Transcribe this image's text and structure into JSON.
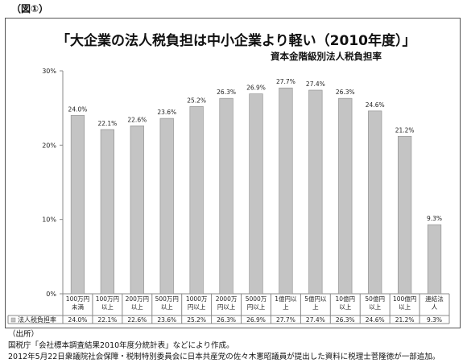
{
  "figure_label": "（図①）",
  "footer": {
    "heading": "（出所）",
    "line1": "国税庁「会社標本調査結果2010年度分統計表」などにより作成。",
    "line2": "2012年5月22日衆議院社会保障・税制特別委員会に日本共産党の佐々木憲昭議員が提出した資料に税理士菅隆徳が一部追加。"
  },
  "chart_data": {
    "type": "bar",
    "title": "「大企業の法人税負担は中小企業より軽い（2010年度）」",
    "subtitle": "資本金階級別法人税負担率",
    "categories": [
      [
        "100万円",
        "未満"
      ],
      [
        "100万円",
        "以上"
      ],
      [
        "200万円",
        "以上"
      ],
      [
        "500万円",
        "以上"
      ],
      [
        "1000万",
        "円以上"
      ],
      [
        "2000万",
        "円以上"
      ],
      [
        "5000万",
        "円以上"
      ],
      [
        "1億円以",
        "上"
      ],
      [
        "5億円以",
        "上"
      ],
      [
        "10億円",
        "以上"
      ],
      [
        "50億円",
        "以上"
      ],
      [
        "100億円",
        "以上"
      ],
      [
        "連結法",
        "人"
      ]
    ],
    "series": [
      {
        "name": "法人税負担率",
        "values": [
          24.0,
          22.1,
          22.6,
          23.6,
          25.2,
          26.3,
          26.9,
          27.7,
          27.4,
          26.3,
          24.6,
          21.2,
          9.3
        ],
        "labels": [
          "24.0%",
          "22.1%",
          "22.6%",
          "23.6%",
          "25.2%",
          "26.3%",
          "26.9%",
          "27.7%",
          "27.4%",
          "26.3%",
          "24.6%",
          "21.2%",
          "9.3%"
        ]
      }
    ],
    "ylim": [
      0,
      30
    ],
    "yticks": [
      0,
      10,
      20,
      30
    ],
    "ytick_labels": [
      "0%",
      "10%",
      "20%",
      "30%"
    ],
    "grid": false,
    "legend": "table-row",
    "colors": {
      "bar": "#c4c4c4",
      "bar_stroke": "#8a8a8a",
      "axis": "#888888"
    }
  }
}
